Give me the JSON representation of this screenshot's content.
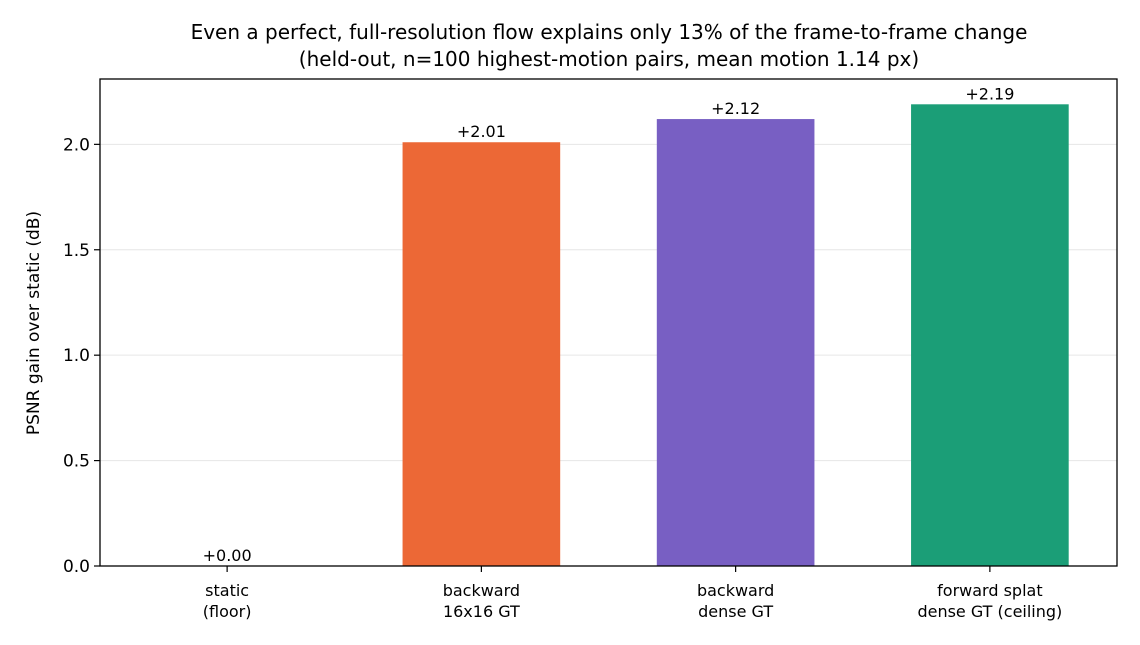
{
  "chart_data": {
    "type": "bar",
    "title_line1": "Even a perfect, full-resolution flow explains only 13% of the frame-to-frame change",
    "title_line2": "(held-out, n=100 highest-motion pairs, mean motion 1.14 px)",
    "ylabel": "PSNR gain over static (dB)",
    "xlabel": "",
    "categories": [
      [
        "static",
        "(floor)"
      ],
      [
        "backward",
        "16x16 GT"
      ],
      [
        "backward",
        "dense GT"
      ],
      [
        "forward splat",
        "dense GT (ceiling)"
      ]
    ],
    "values": [
      0.0,
      2.01,
      2.12,
      2.19
    ],
    "value_labels": [
      "+0.00",
      "+2.01",
      "+2.12",
      "+2.19"
    ],
    "colors": [
      "#ec6836",
      "#ec6836",
      "#785fc3",
      "#1b9e77"
    ],
    "ylim": [
      0,
      2.31
    ],
    "yticks": [
      0.0,
      0.5,
      1.0,
      1.5,
      2.0
    ],
    "ytick_labels": [
      "0.0",
      "0.5",
      "1.0",
      "1.5",
      "2.0"
    ],
    "grid": true,
    "legend": "none"
  }
}
